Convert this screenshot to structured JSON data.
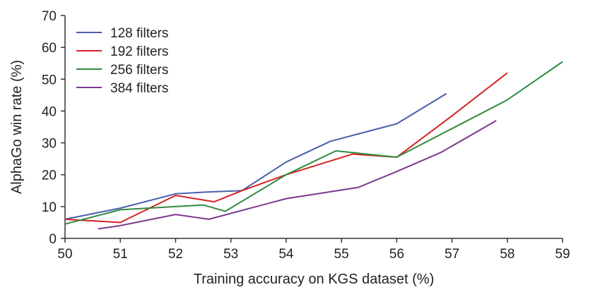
{
  "chart_data": {
    "type": "line",
    "title": "",
    "xlabel": "Training accuracy on KGS dataset (%)",
    "ylabel": "AlphaGo win rate (%)",
    "xlim": [
      50,
      59
    ],
    "ylim": [
      0,
      70
    ],
    "xticks": [
      50,
      51,
      52,
      53,
      54,
      55,
      56,
      57,
      58,
      59
    ],
    "yticks": [
      0,
      10,
      20,
      30,
      40,
      50,
      60,
      70
    ],
    "grid": false,
    "legend_position": "top-left",
    "series": [
      {
        "name": "128 filters",
        "color": "#4a5faa",
        "points": [
          [
            50.0,
            6
          ],
          [
            51.0,
            9.5
          ],
          [
            52.0,
            14
          ],
          [
            52.5,
            14.5
          ],
          [
            53.2,
            15
          ],
          [
            54.0,
            24
          ],
          [
            54.8,
            30.5
          ],
          [
            56.0,
            36
          ],
          [
            56.9,
            45.5
          ]
        ]
      },
      {
        "name": "192 filters",
        "color": "#d62222",
        "points": [
          [
            50.0,
            6
          ],
          [
            51.0,
            5
          ],
          [
            52.0,
            13.5
          ],
          [
            52.7,
            11.5
          ],
          [
            53.2,
            15
          ],
          [
            54.0,
            20
          ],
          [
            55.2,
            26.5
          ],
          [
            56.0,
            25.5
          ],
          [
            57.0,
            38.5
          ],
          [
            58.0,
            52
          ]
        ]
      },
      {
        "name": "256 filters",
        "color": "#2e8b40",
        "points": [
          [
            50.0,
            4.5
          ],
          [
            51.0,
            9
          ],
          [
            52.0,
            10
          ],
          [
            52.5,
            10.5
          ],
          [
            52.9,
            8.5
          ],
          [
            54.0,
            20
          ],
          [
            54.9,
            27.5
          ],
          [
            56.0,
            25.5
          ],
          [
            57.0,
            34.5
          ],
          [
            58.0,
            43.5
          ],
          [
            59.0,
            55.5
          ]
        ]
      },
      {
        "name": "384 filters",
        "color": "#7a3a8e",
        "points": [
          [
            50.6,
            3
          ],
          [
            51.0,
            4
          ],
          [
            52.0,
            7.5
          ],
          [
            52.6,
            6
          ],
          [
            54.0,
            12.5
          ],
          [
            55.3,
            16
          ],
          [
            56.0,
            21
          ],
          [
            56.8,
            27
          ],
          [
            57.8,
            37
          ]
        ]
      }
    ]
  }
}
